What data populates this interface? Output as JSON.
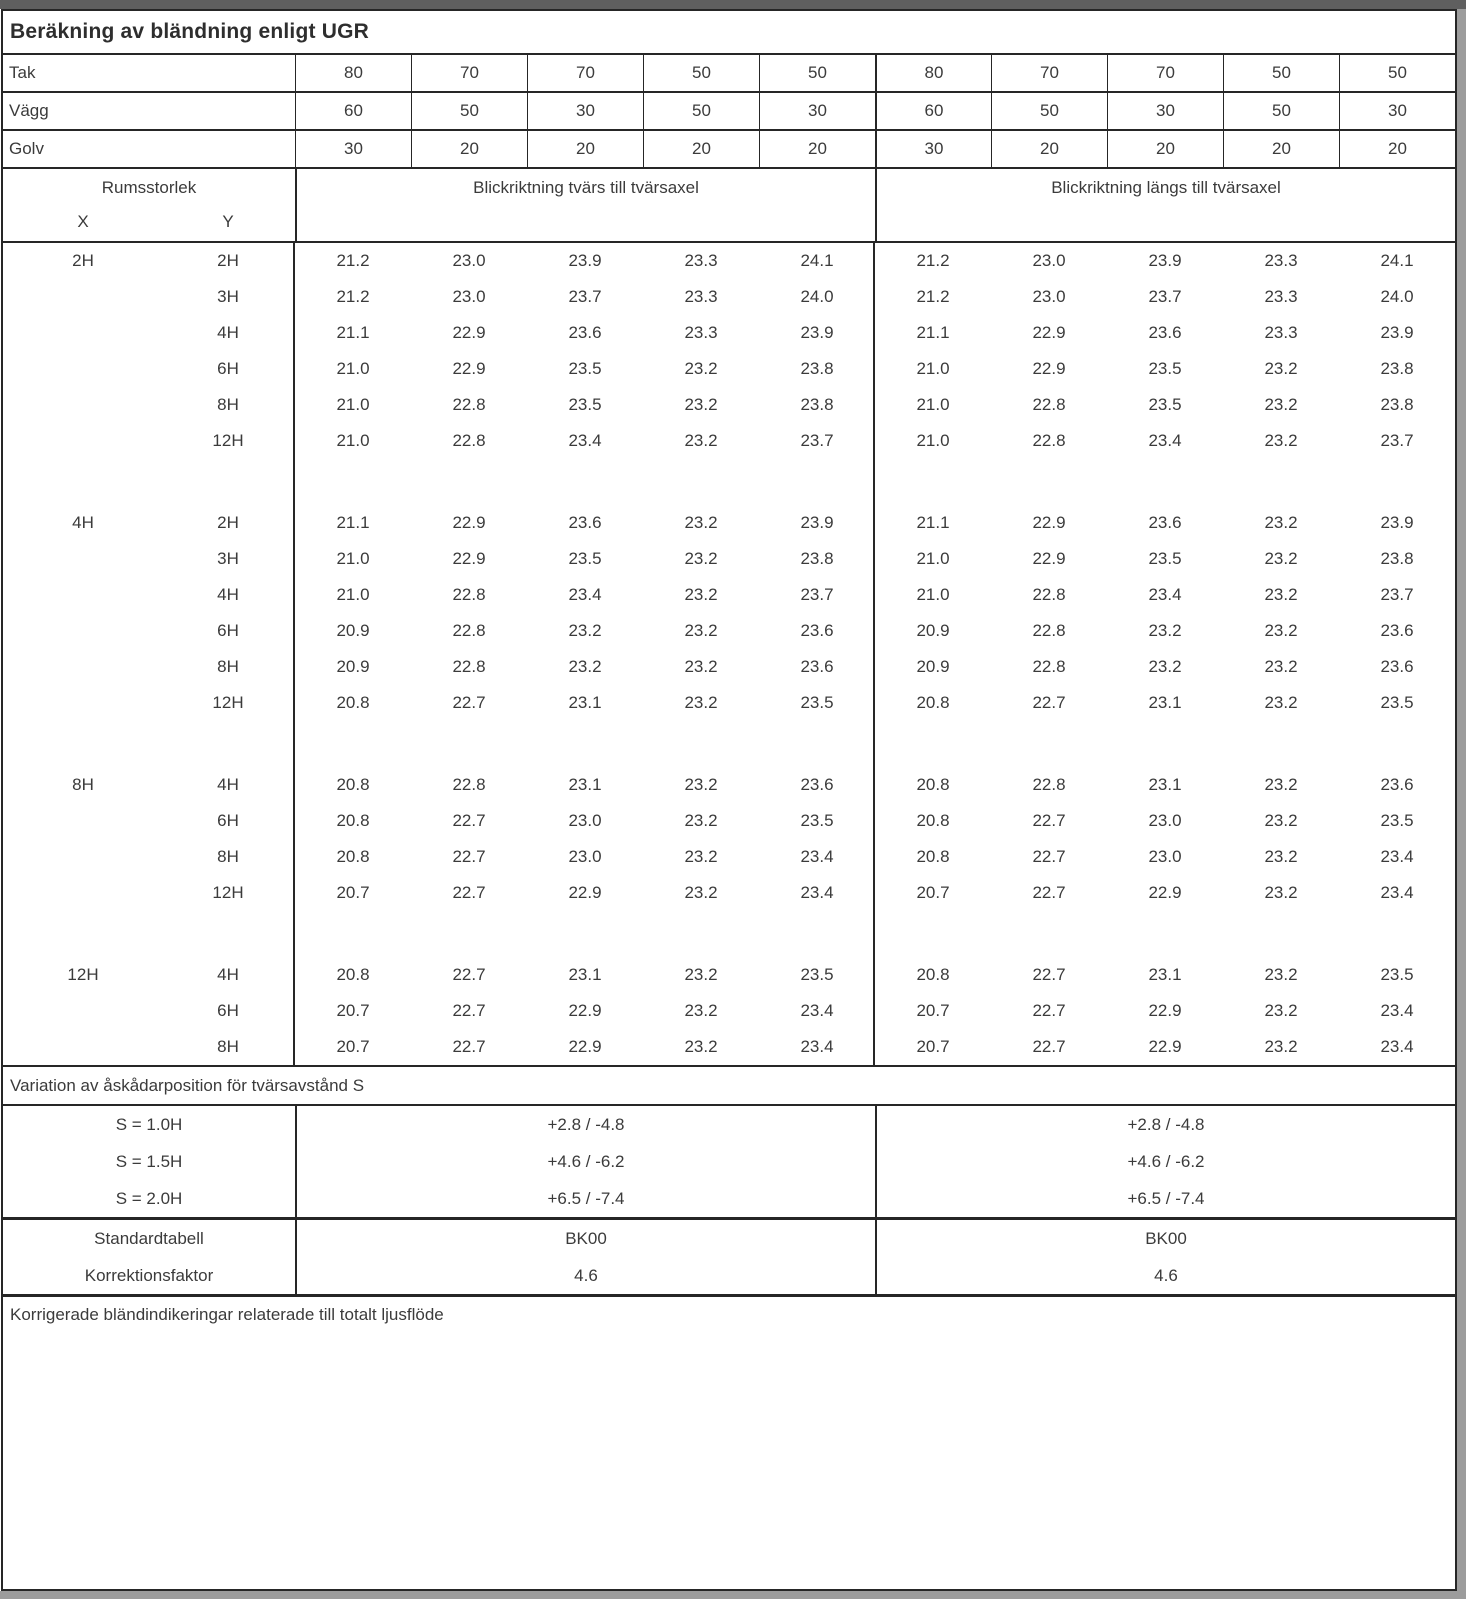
{
  "page_title": "Beräkning av bländning enligt UGR",
  "surface_rows": [
    {
      "label": "Tak",
      "values": [
        "80",
        "70",
        "70",
        "50",
        "50",
        "80",
        "70",
        "70",
        "50",
        "50"
      ]
    },
    {
      "label": "Vägg",
      "values": [
        "60",
        "50",
        "30",
        "50",
        "30",
        "60",
        "50",
        "30",
        "50",
        "30"
      ]
    },
    {
      "label": "Golv",
      "values": [
        "30",
        "20",
        "20",
        "20",
        "20",
        "30",
        "20",
        "20",
        "20",
        "20"
      ]
    }
  ],
  "matrix_header": {
    "room_size": "Rumsstorlek",
    "x": "X",
    "y": "Y",
    "left_half": "Blickriktning tvärs till tvärsaxel",
    "right_half": "Blickriktning längs till tvärsaxel"
  },
  "ugr_blocks": [
    {
      "x": "2H",
      "rows": [
        {
          "y": "2H",
          "values": [
            "21.2",
            "23.0",
            "23.9",
            "23.3",
            "24.1",
            "21.2",
            "23.0",
            "23.9",
            "23.3",
            "24.1"
          ]
        },
        {
          "y": "3H",
          "values": [
            "21.2",
            "23.0",
            "23.7",
            "23.3",
            "24.0",
            "21.2",
            "23.0",
            "23.7",
            "23.3",
            "24.0"
          ]
        },
        {
          "y": "4H",
          "values": [
            "21.1",
            "22.9",
            "23.6",
            "23.3",
            "23.9",
            "21.1",
            "22.9",
            "23.6",
            "23.3",
            "23.9"
          ]
        },
        {
          "y": "6H",
          "values": [
            "21.0",
            "22.9",
            "23.5",
            "23.2",
            "23.8",
            "21.0",
            "22.9",
            "23.5",
            "23.2",
            "23.8"
          ]
        },
        {
          "y": "8H",
          "values": [
            "21.0",
            "22.8",
            "23.5",
            "23.2",
            "23.8",
            "21.0",
            "22.8",
            "23.5",
            "23.2",
            "23.8"
          ]
        },
        {
          "y": "12H",
          "values": [
            "21.0",
            "22.8",
            "23.4",
            "23.2",
            "23.7",
            "21.0",
            "22.8",
            "23.4",
            "23.2",
            "23.7"
          ]
        }
      ]
    },
    {
      "x": "4H",
      "rows": [
        {
          "y": "2H",
          "values": [
            "21.1",
            "22.9",
            "23.6",
            "23.2",
            "23.9",
            "21.1",
            "22.9",
            "23.6",
            "23.2",
            "23.9"
          ]
        },
        {
          "y": "3H",
          "values": [
            "21.0",
            "22.9",
            "23.5",
            "23.2",
            "23.8",
            "21.0",
            "22.9",
            "23.5",
            "23.2",
            "23.8"
          ]
        },
        {
          "y": "4H",
          "values": [
            "21.0",
            "22.8",
            "23.4",
            "23.2",
            "23.7",
            "21.0",
            "22.8",
            "23.4",
            "23.2",
            "23.7"
          ]
        },
        {
          "y": "6H",
          "values": [
            "20.9",
            "22.8",
            "23.2",
            "23.2",
            "23.6",
            "20.9",
            "22.8",
            "23.2",
            "23.2",
            "23.6"
          ]
        },
        {
          "y": "8H",
          "values": [
            "20.9",
            "22.8",
            "23.2",
            "23.2",
            "23.6",
            "20.9",
            "22.8",
            "23.2",
            "23.2",
            "23.6"
          ]
        },
        {
          "y": "12H",
          "values": [
            "20.8",
            "22.7",
            "23.1",
            "23.2",
            "23.5",
            "20.8",
            "22.7",
            "23.1",
            "23.2",
            "23.5"
          ]
        }
      ]
    },
    {
      "x": "8H",
      "rows": [
        {
          "y": "4H",
          "values": [
            "20.8",
            "22.8",
            "23.1",
            "23.2",
            "23.6",
            "20.8",
            "22.8",
            "23.1",
            "23.2",
            "23.6"
          ]
        },
        {
          "y": "6H",
          "values": [
            "20.8",
            "22.7",
            "23.0",
            "23.2",
            "23.5",
            "20.8",
            "22.7",
            "23.0",
            "23.2",
            "23.5"
          ]
        },
        {
          "y": "8H",
          "values": [
            "20.8",
            "22.7",
            "23.0",
            "23.2",
            "23.4",
            "20.8",
            "22.7",
            "23.0",
            "23.2",
            "23.4"
          ]
        },
        {
          "y": "12H",
          "values": [
            "20.7",
            "22.7",
            "22.9",
            "23.2",
            "23.4",
            "20.7",
            "22.7",
            "22.9",
            "23.2",
            "23.4"
          ]
        }
      ]
    },
    {
      "x": "12H",
      "rows": [
        {
          "y": "4H",
          "values": [
            "20.8",
            "22.7",
            "23.1",
            "23.2",
            "23.5",
            "20.8",
            "22.7",
            "23.1",
            "23.2",
            "23.5"
          ]
        },
        {
          "y": "6H",
          "values": [
            "20.7",
            "22.7",
            "22.9",
            "23.2",
            "23.4",
            "20.7",
            "22.7",
            "22.9",
            "23.2",
            "23.4"
          ]
        },
        {
          "y": "8H",
          "values": [
            "20.7",
            "22.7",
            "22.9",
            "23.2",
            "23.4",
            "20.7",
            "22.7",
            "22.9",
            "23.2",
            "23.4"
          ]
        }
      ]
    }
  ],
  "variation_section": {
    "title": "Variation av åskådarposition för tvärsavstånd S",
    "rows": [
      {
        "label": "S = 1.0H",
        "left": "+2.8 / -4.8",
        "right": "+2.8 / -4.8"
      },
      {
        "label": "S = 1.5H",
        "left": "+4.6 / -6.2",
        "right": "+4.6 / -6.2"
      },
      {
        "label": "S = 2.0H",
        "left": "+6.5 / -7.4",
        "right": "+6.5 / -7.4"
      }
    ]
  },
  "standard_section": {
    "rows": [
      {
        "label": "Standardtabell",
        "left": "BK00",
        "right": "BK00"
      },
      {
        "label": "Korrektionsfaktor",
        "left": "4.6",
        "right": "4.6"
      }
    ]
  },
  "footer_note": "Korrigerade bländindikeringar relaterade till totalt ljusflöde",
  "colors": {
    "border": "#262626",
    "text": "#3b3b3b",
    "page_edge_top": "#5f5f5f",
    "page_edge_side": "#9c9c9c"
  }
}
